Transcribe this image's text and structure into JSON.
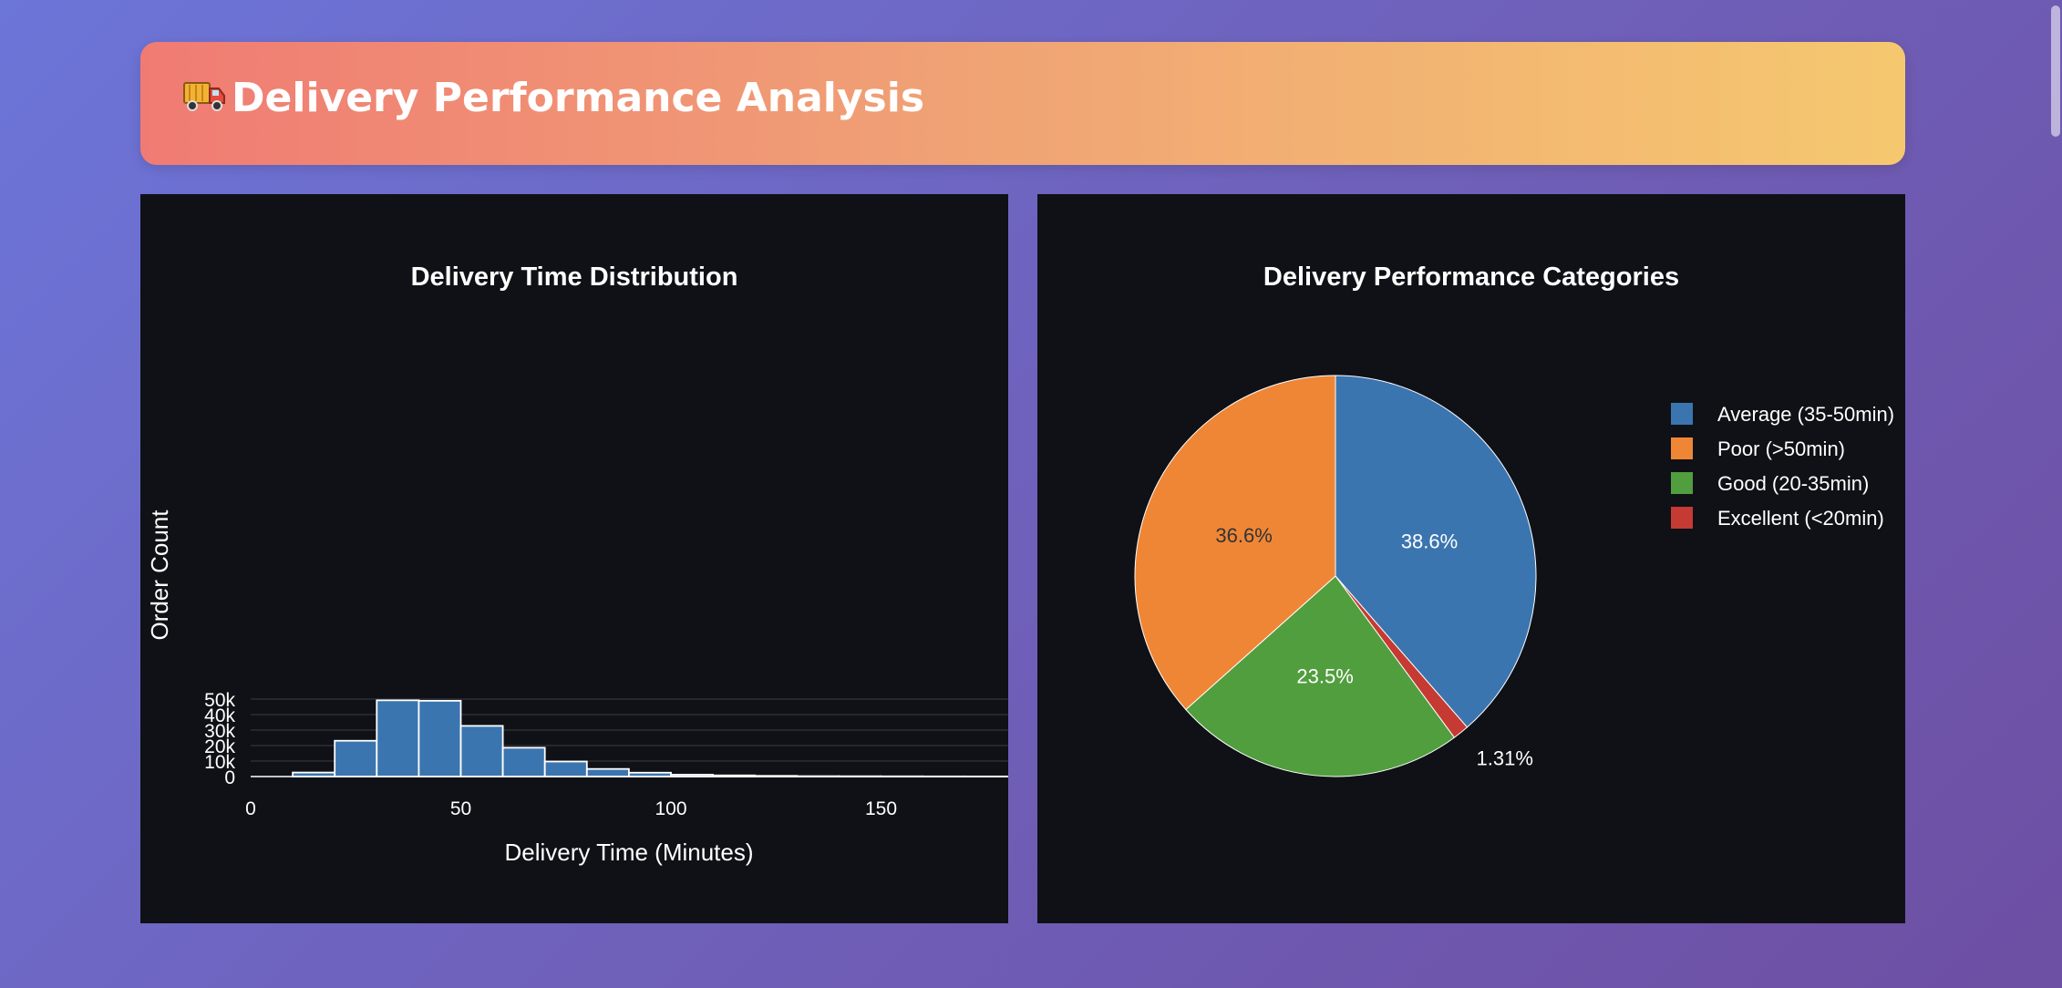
{
  "header": {
    "title": "Delivery Performance Analysis",
    "icon": "delivery-truck-icon"
  },
  "colors": {
    "panel_bg": "#0f1116",
    "bar": "#3b75af",
    "grid": "#2b2f36"
  },
  "chart_data": [
    {
      "type": "bar",
      "subtype": "histogram",
      "title": "Delivery Time Distribution",
      "xlabel": "Delivery Time (Minutes)",
      "ylabel": "Order Count",
      "xlim": [
        0,
        180
      ],
      "ylim": [
        0,
        55000
      ],
      "xticks": [
        0,
        50,
        100,
        150
      ],
      "xtick_labels": [
        "0",
        "50",
        "100",
        "150"
      ],
      "yticks": [
        0,
        10000,
        20000,
        30000,
        40000,
        50000
      ],
      "ytick_labels": [
        "0",
        "10k",
        "20k",
        "30k",
        "40k",
        "50k"
      ],
      "grid": true,
      "bin_width": 10,
      "bins": [
        {
          "x0": 0,
          "x1": 10,
          "value": 0
        },
        {
          "x0": 10,
          "x1": 20,
          "value": 2600
        },
        {
          "x0": 20,
          "x1": 30,
          "value": 23100
        },
        {
          "x0": 30,
          "x1": 40,
          "value": 49200
        },
        {
          "x0": 40,
          "x1": 50,
          "value": 48900
        },
        {
          "x0": 50,
          "x1": 60,
          "value": 32700
        },
        {
          "x0": 60,
          "x1": 70,
          "value": 18600
        },
        {
          "x0": 70,
          "x1": 80,
          "value": 9700
        },
        {
          "x0": 80,
          "x1": 90,
          "value": 4900
        },
        {
          "x0": 90,
          "x1": 100,
          "value": 2500
        },
        {
          "x0": 100,
          "x1": 110,
          "value": 1200
        },
        {
          "x0": 110,
          "x1": 120,
          "value": 750
        },
        {
          "x0": 120,
          "x1": 130,
          "value": 450
        },
        {
          "x0": 130,
          "x1": 140,
          "value": 250
        },
        {
          "x0": 140,
          "x1": 150,
          "value": 200
        },
        {
          "x0": 150,
          "x1": 160,
          "value": 150
        },
        {
          "x0": 160,
          "x1": 170,
          "value": 100
        },
        {
          "x0": 170,
          "x1": 180,
          "value": 80
        }
      ]
    },
    {
      "type": "pie",
      "title": "Delivery Performance Categories",
      "legend_position": "top-right",
      "slices": [
        {
          "label": "Average (35-50min)",
          "value": 38.6,
          "text": "38.6%",
          "color": "#3b75af",
          "text_color": "#ffffff"
        },
        {
          "label": "Excellent (<20min)",
          "value": 1.31,
          "text": "1.31%",
          "color": "#c53a32",
          "text_color": "#ffffff"
        },
        {
          "label": "Good (20-35min)",
          "value": 23.5,
          "text": "23.5%",
          "color": "#519e3e",
          "text_color": "#ffffff"
        },
        {
          "label": "Poor (>50min)",
          "value": 36.6,
          "text": "36.6%",
          "color": "#ef8636",
          "text_color": "#333333"
        }
      ],
      "legend": [
        {
          "label": "Average (35-50min)",
          "color": "#3b75af"
        },
        {
          "label": "Poor (>50min)",
          "color": "#ef8636"
        },
        {
          "label": "Good (20-35min)",
          "color": "#519e3e"
        },
        {
          "label": "Excellent (<20min)",
          "color": "#c53a32"
        }
      ]
    }
  ]
}
